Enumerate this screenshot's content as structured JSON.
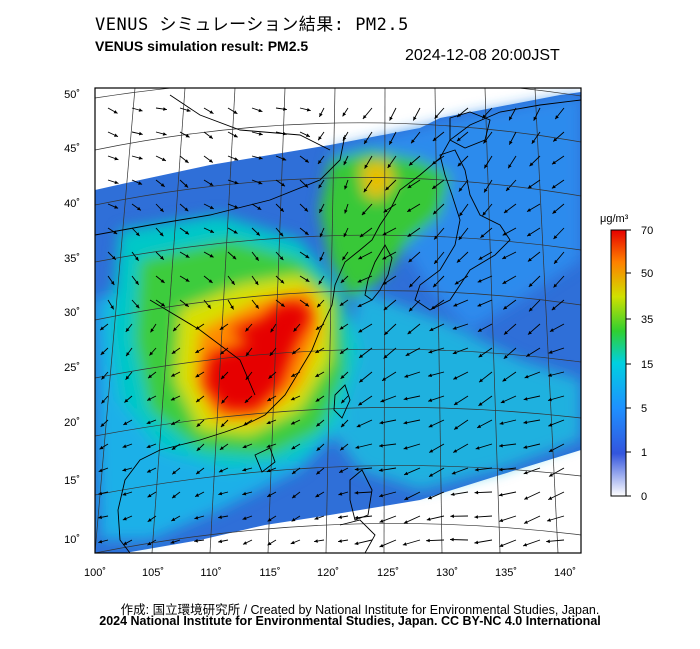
{
  "header": {
    "title_jp": "VENUS シミュレーション結果: PM2.5",
    "title_en": "VENUS simulation result: PM2.5",
    "timestamp": "2024-12-08 20:00JST"
  },
  "map_data": {
    "projection": "polar-stereographic",
    "variable": "PM2.5",
    "lon_range": [
      100,
      141
    ],
    "lat_range": [
      9,
      51
    ],
    "lon_ticks": [
      "100˚",
      "105˚",
      "110˚",
      "115˚",
      "120˚",
      "125˚",
      "130˚",
      "135˚",
      "140˚"
    ],
    "lat_ticks": [
      "50˚",
      "45˚",
      "40˚",
      "35˚",
      "30˚",
      "25˚",
      "20˚",
      "15˚",
      "10˚"
    ],
    "wind_field": "north-easterly over sea, north-westerly over continent",
    "high_concentration_region": "southern China, around 110˚-118˚E, 21˚-31˚N",
    "features": [
      "coastline",
      "national borders",
      "lat-lon graticule",
      "wind vectors"
    ]
  },
  "colorbar": {
    "unit": "μg/m³",
    "labels": [
      "70",
      "50",
      "35",
      "15",
      "5",
      "1",
      "0"
    ],
    "colors": [
      "#ffffff",
      "#3355dd",
      "#1e90ff",
      "#00d0e0",
      "#30d030",
      "#d0e000",
      "#ff8000",
      "#e60000"
    ]
  },
  "footer": {
    "credit_line": "作成: 国立環境研究所 / Created by National Institute for Environmental Studies, Japan.",
    "copyright_line": "2024 National Institute for Environmental Studies, Japan. CC BY-NC 4.0 International"
  }
}
